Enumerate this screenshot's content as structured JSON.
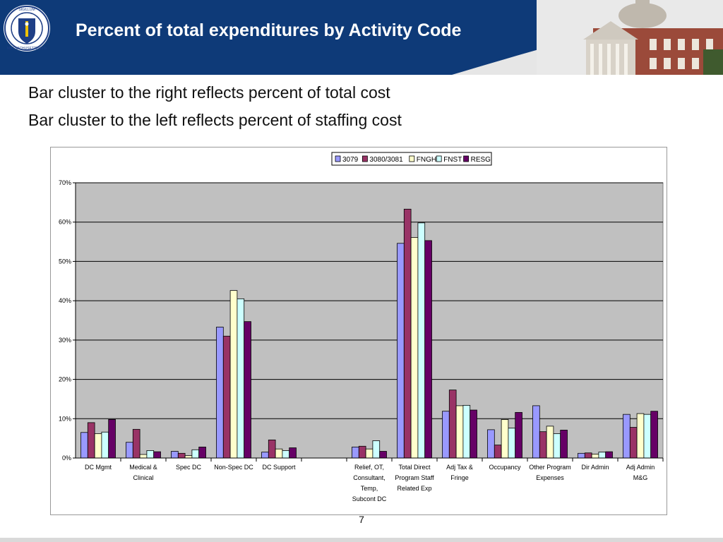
{
  "slide": {
    "title": "Percent of total expenditures by Activity Code",
    "bullets": [
      "Bar cluster to the right reflects percent of total cost",
      "Bar cluster to the left reflects percent of staffing cost"
    ],
    "page_number": "7"
  },
  "colors": {
    "header_blue": "#0e3a78",
    "plot_bg": "#c0c0c0"
  },
  "chart_data": {
    "type": "bar",
    "title": "",
    "xlabel": "",
    "ylabel": "",
    "ylim": [
      0,
      70
    ],
    "y_ticks": [
      "0%",
      "10%",
      "20%",
      "30%",
      "40%",
      "50%",
      "60%",
      "70%"
    ],
    "grid": true,
    "legend_position": "top-center",
    "categories": [
      [
        "DC Mgmt"
      ],
      [
        "Medical &",
        "Clinical"
      ],
      [
        "Spec DC"
      ],
      [
        "Non-Spec DC"
      ],
      [
        "DC Support"
      ],
      [
        ""
      ],
      [
        "Relief, OT,",
        "Consultant,",
        "Temp,",
        "Subcont DC"
      ],
      [
        "Total Direct",
        "Program Staff",
        "Related Exp"
      ],
      [
        "Adj Tax &",
        "Fringe"
      ],
      [
        "Occupancy"
      ],
      [
        "Other Program",
        "Expenses"
      ],
      [
        "Dir Admin"
      ],
      [
        "Adj Admin",
        "M&G"
      ]
    ],
    "series": [
      {
        "name": "3079",
        "color": "#9999ff",
        "values": [
          6.5,
          4.0,
          1.7,
          33.3,
          1.5,
          null,
          2.8,
          54.6,
          11.9,
          7.2,
          13.3,
          1.2,
          11.1
        ]
      },
      {
        "name": "3080/3081",
        "color": "#993366",
        "values": [
          9.0,
          7.3,
          1.2,
          31.0,
          4.6,
          null,
          3.0,
          63.3,
          17.3,
          3.3,
          6.7,
          1.3,
          7.8
        ]
      },
      {
        "name": "FNGH",
        "color": "#ffffcc",
        "values": [
          6.2,
          0.9,
          0.6,
          42.6,
          2.3,
          null,
          2.3,
          56.1,
          13.3,
          9.8,
          8.1,
          1.0,
          11.3
        ]
      },
      {
        "name": "FNST",
        "color": "#ccffff",
        "values": [
          6.6,
          1.9,
          2.1,
          40.5,
          1.9,
          null,
          4.4,
          59.8,
          13.4,
          7.6,
          6.2,
          1.5,
          11.1
        ]
      },
      {
        "name": "RESG",
        "color": "#660066",
        "values": [
          9.8,
          1.6,
          2.8,
          34.7,
          2.6,
          null,
          1.7,
          55.3,
          12.2,
          11.6,
          7.1,
          1.6,
          11.9
        ]
      }
    ]
  }
}
